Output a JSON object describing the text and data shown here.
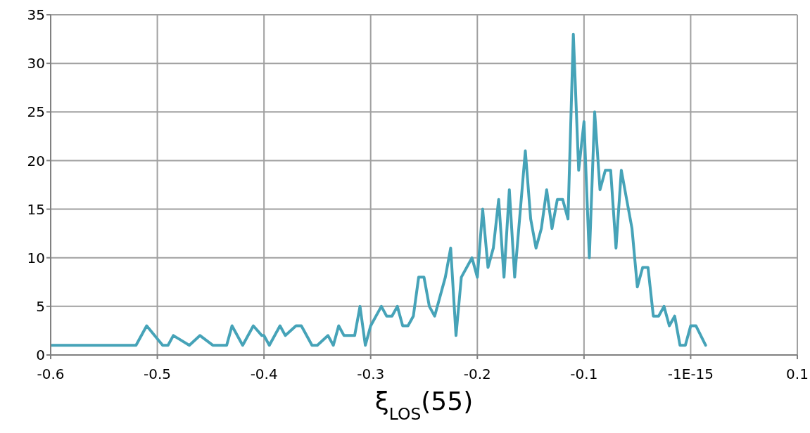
{
  "chart_data": {
    "type": "line",
    "xlabel": "ξ$_{LOS}$(55)",
    "x": [
      -0.6,
      -0.52,
      -0.51,
      -0.495,
      -0.49,
      -0.485,
      -0.47,
      -0.46,
      -0.448,
      -0.435,
      -0.43,
      -0.42,
      -0.41,
      -0.402,
      -0.4,
      -0.395,
      -0.385,
      -0.38,
      -0.37,
      -0.365,
      -0.355,
      -0.35,
      -0.34,
      -0.335,
      -0.33,
      -0.325,
      -0.315,
      -0.31,
      -0.305,
      -0.3,
      -0.29,
      -0.285,
      -0.28,
      -0.275,
      -0.27,
      -0.265,
      -0.26,
      -0.255,
      -0.25,
      -0.245,
      -0.24,
      -0.23,
      -0.225,
      -0.22,
      -0.215,
      -0.205,
      -0.2,
      -0.195,
      -0.19,
      -0.185,
      -0.18,
      -0.175,
      -0.17,
      -0.165,
      -0.155,
      -0.15,
      -0.145,
      -0.14,
      -0.135,
      -0.13,
      -0.125,
      -0.12,
      -0.115,
      -0.11,
      -0.105,
      -0.1,
      -0.095,
      -0.09,
      -0.085,
      -0.08,
      -0.075,
      -0.07,
      -0.065,
      -0.06,
      -0.055,
      -0.05,
      -0.045,
      -0.04,
      -0.035,
      -0.03,
      -0.025,
      -0.02,
      -0.015,
      -0.01,
      -0.005,
      0,
      0.005,
      0.014
    ],
    "series": [
      {
        "color": "#46a3b8",
        "values": [
          1,
          1,
          3,
          1,
          1,
          2,
          1,
          2,
          1,
          1,
          3,
          1,
          3,
          2,
          2,
          1,
          3,
          2,
          3,
          3,
          1,
          1,
          2,
          1,
          3,
          2,
          2,
          5,
          1,
          3,
          5,
          4,
          4,
          5,
          3,
          3,
          4,
          8,
          8,
          5,
          4,
          8,
          11,
          2,
          8,
          10,
          8,
          15,
          9,
          11,
          16,
          8,
          17,
          8,
          21,
          14,
          11,
          13,
          17,
          13,
          16,
          16,
          14,
          33,
          19,
          24,
          10,
          25,
          17,
          19,
          19,
          11,
          19,
          16,
          13,
          7,
          9,
          9,
          4,
          4,
          5,
          3,
          4,
          1,
          1,
          3,
          3,
          1
        ]
      }
    ],
    "xlim": [
      -0.6,
      0.1
    ],
    "xticks": [
      -0.6,
      -0.5,
      -0.4,
      -0.3,
      -0.2,
      -0.1,
      {
        "value": 0,
        "label": "-1E-15"
      },
      0.1
    ],
    "ylim": [
      0,
      35
    ],
    "yticks": [
      0,
      5,
      10,
      15,
      20,
      25,
      30,
      35
    ],
    "grid": true,
    "legend": false,
    "marker": "none",
    "line_style": "solid"
  }
}
